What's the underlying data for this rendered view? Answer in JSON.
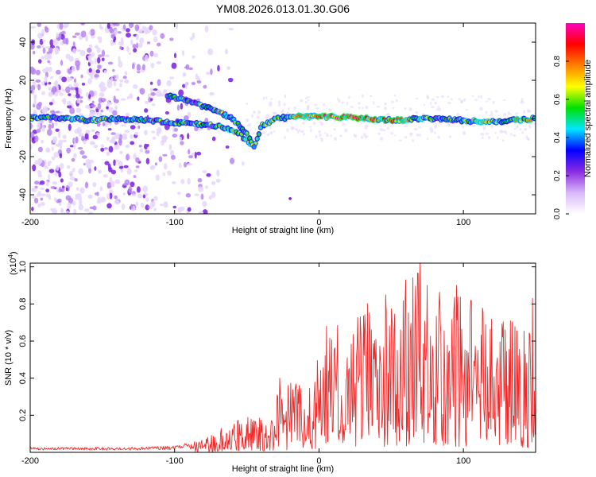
{
  "title": "YM08.2026.013.01.30.G06",
  "colors": {
    "spec_dot_light": "#e6d6fb",
    "spec_dot_mid": "#b985f2",
    "spec_dot_dark": "#7a1fe0",
    "snr_line": "#f02a2a",
    "frame": "#000000"
  },
  "chart_data": [
    {
      "type": "heatmap",
      "title": "YM08.2026.013.01.30.G06",
      "xlabel": "Height of straight line (km)",
      "ylabel": "Frequency (Hz)",
      "xlim": [
        -200,
        150
      ],
      "ylim": [
        -50,
        50
      ],
      "x_ticks": [
        -200,
        -100,
        0,
        100
      ],
      "x_tick_labels": [
        "-200",
        "-100",
        "0",
        "100"
      ],
      "y_ticks": [
        -40,
        -20,
        0,
        20,
        40
      ],
      "y_tick_labels": [
        "-40",
        "-20",
        "0",
        "20",
        "40"
      ],
      "colorbar": {
        "label": "Normalized spectral amplitude",
        "range": [
          0,
          1
        ],
        "ticks": [
          0.0,
          0.2,
          0.4,
          0.6,
          0.8
        ],
        "tick_labels": [
          "0.0",
          "0.2",
          "0.4",
          "0.6",
          "0.8"
        ],
        "colormap": [
          "#ffffff",
          "#d8b8f8",
          "#8a2be2",
          "#0000ff",
          "#00e5ff",
          "#00e000",
          "#ffff00",
          "#ff8000",
          "#ff0000",
          "#ff00c0"
        ]
      },
      "ridge": [
        {
          "x": -200,
          "f": 0.5,
          "a": 0.55
        },
        {
          "x": -180,
          "f": 0.5,
          "a": 0.55
        },
        {
          "x": -160,
          "f": -1,
          "a": 0.5
        },
        {
          "x": -140,
          "f": 0,
          "a": 0.5
        },
        {
          "x": -120,
          "f": -1,
          "a": 0.45
        },
        {
          "x": -100,
          "f": -2,
          "a": 0.5
        },
        {
          "x": -85,
          "f": -3,
          "a": 0.5
        },
        {
          "x": -70,
          "f": -4,
          "a": 0.55
        },
        {
          "x": -55,
          "f": -8,
          "a": 0.6
        },
        {
          "x": -45,
          "f": -15,
          "a": 0.55
        },
        {
          "x": -40,
          "f": -4,
          "a": 0.5
        },
        {
          "x": -30,
          "f": 0,
          "a": 0.55
        },
        {
          "x": -15,
          "f": 1,
          "a": 0.65
        },
        {
          "x": 0,
          "f": 1,
          "a": 0.8
        },
        {
          "x": 20,
          "f": 0.5,
          "a": 0.85
        },
        {
          "x": 50,
          "f": -1,
          "a": 0.7
        },
        {
          "x": 80,
          "f": 0,
          "a": 0.55
        },
        {
          "x": 100,
          "f": -1,
          "a": 0.5
        },
        {
          "x": 120,
          "f": -2,
          "a": 0.6
        },
        {
          "x": 150,
          "f": 0,
          "a": 0.6
        }
      ],
      "branch": [
        {
          "x": -105,
          "f": 12,
          "a": 0.45
        },
        {
          "x": -90,
          "f": 9,
          "a": 0.45
        },
        {
          "x": -75,
          "f": 5,
          "a": 0.5
        },
        {
          "x": -60,
          "f": 0,
          "a": 0.55
        },
        {
          "x": -50,
          "f": -8,
          "a": 0.5
        },
        {
          "x": -45,
          "f": -15,
          "a": 0.5
        }
      ]
    },
    {
      "type": "line",
      "xlabel": "Height of straight line (km)",
      "ylabel": "SNR (10 * v/v)",
      "y_multiplier": "(x10",
      "y_multiplier_exp": "4",
      "xlim": [
        -200,
        150
      ],
      "ylim": [
        0,
        1.02
      ],
      "x_ticks": [
        -200,
        -100,
        0,
        100
      ],
      "x_tick_labels": [
        "-200",
        "-100",
        "0",
        "100"
      ],
      "y_ticks": [
        0.2,
        0.4,
        0.6,
        0.8,
        1.0
      ],
      "y_tick_labels": [
        "0.2",
        "0.4",
        "0.6",
        "0.8",
        "1.0"
      ],
      "series": [
        {
          "name": "SNR",
          "envelope": [
            {
              "x": -200,
              "y": 0.02
            },
            {
              "x": -130,
              "y": 0.02
            },
            {
              "x": -100,
              "y": 0.025
            },
            {
              "x": -80,
              "y": 0.05
            },
            {
              "x": -60,
              "y": 0.12
            },
            {
              "x": -40,
              "y": 0.15
            },
            {
              "x": -25,
              "y": 0.25
            },
            {
              "x": -10,
              "y": 0.3
            },
            {
              "x": 5,
              "y": 0.45
            },
            {
              "x": 20,
              "y": 0.55
            },
            {
              "x": 40,
              "y": 0.6
            },
            {
              "x": 70,
              "y": 0.7
            },
            {
              "x": 100,
              "y": 0.6
            },
            {
              "x": 130,
              "y": 0.55
            },
            {
              "x": 150,
              "y": 0.5
            }
          ],
          "peaks": [
            {
              "x": 70,
              "y": 1.02
            },
            {
              "x": 60,
              "y": 0.93
            },
            {
              "x": 75,
              "y": 0.9
            },
            {
              "x": 95,
              "y": 0.9
            },
            {
              "x": 148,
              "y": 0.83
            },
            {
              "x": 5,
              "y": 0.68
            },
            {
              "x": -27,
              "y": 0.4
            }
          ]
        }
      ]
    }
  ]
}
